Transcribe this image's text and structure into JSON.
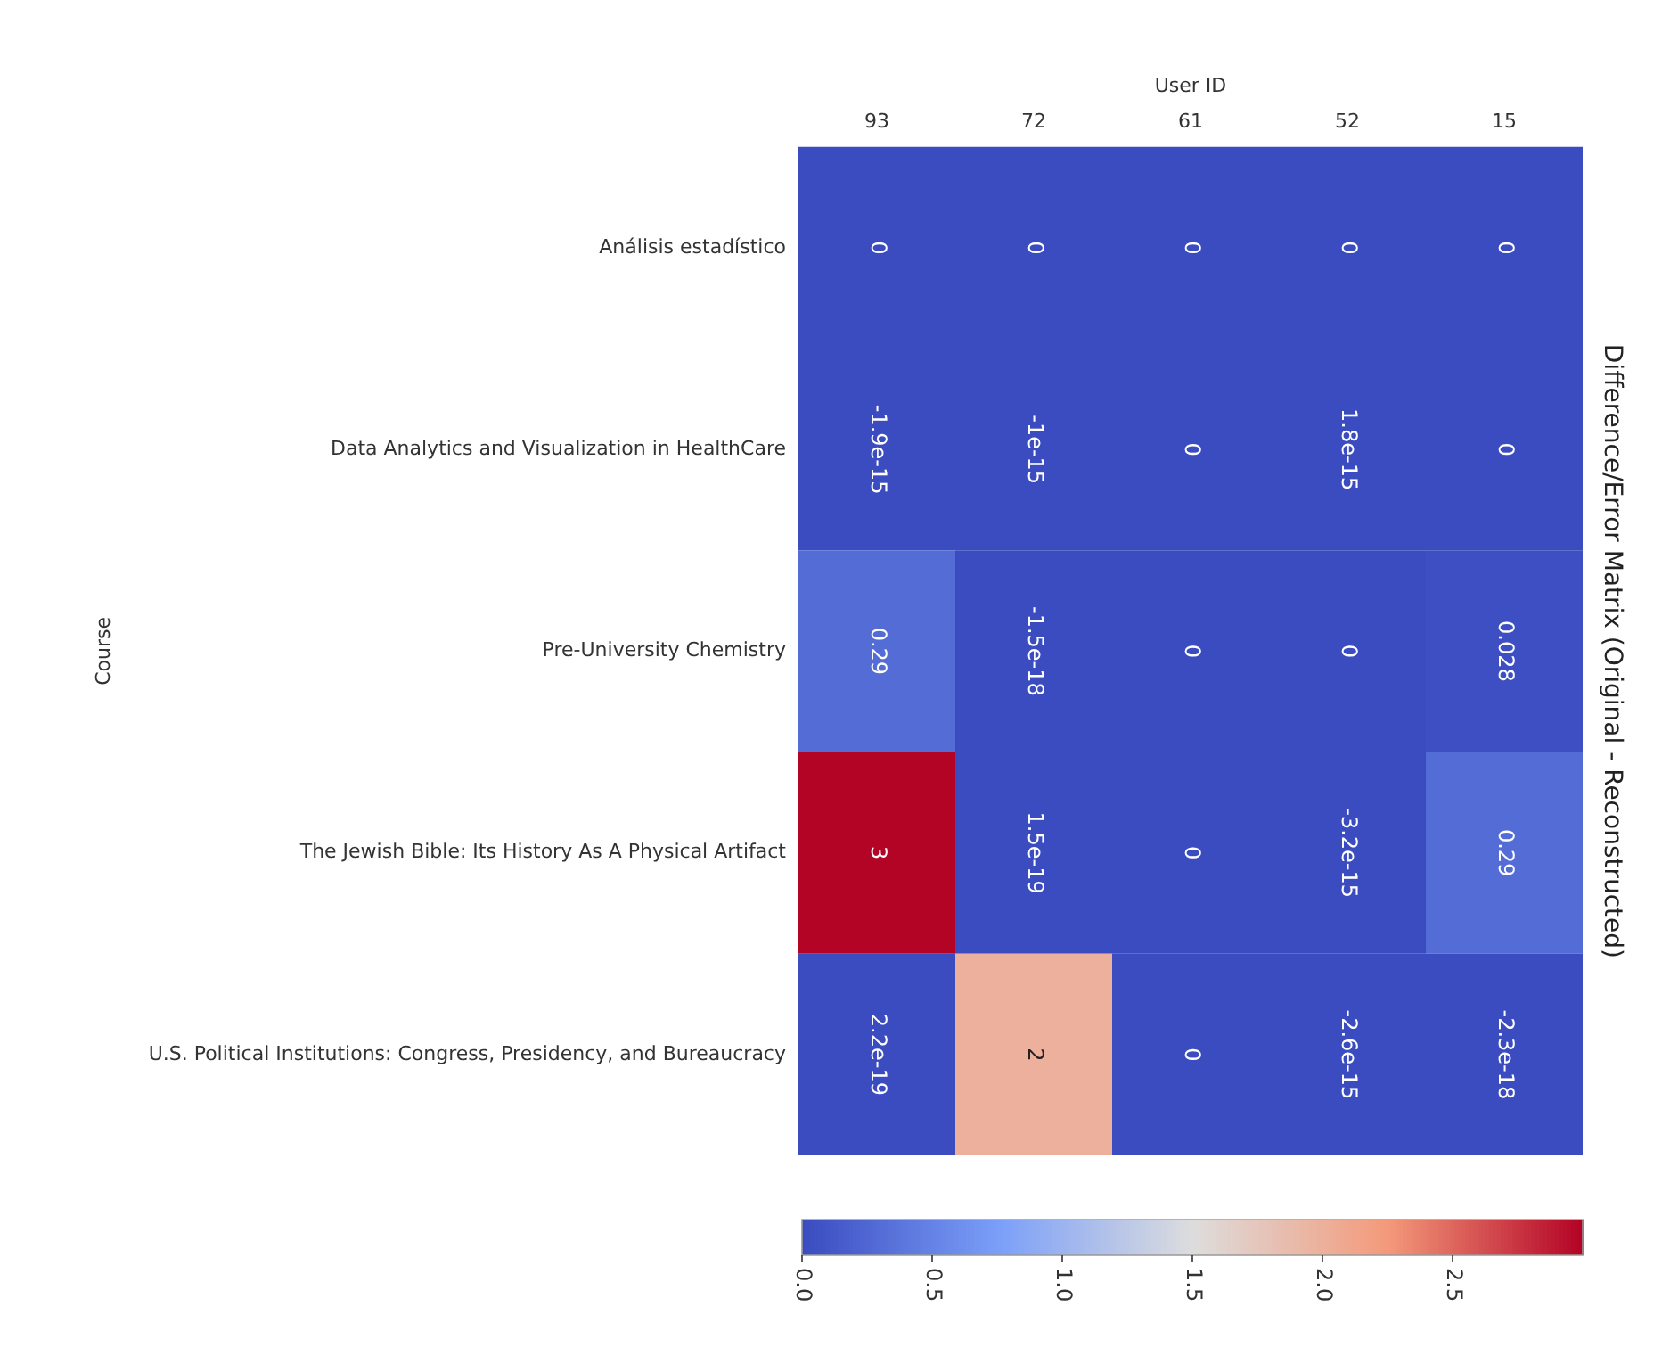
{
  "chart_data": {
    "type": "heatmap",
    "title": "Difference/Error Matrix (Original - Reconstructed)",
    "xlabel": "User ID",
    "ylabel": "Course",
    "categories": [
      "93",
      "72",
      "61",
      "52",
      "15"
    ],
    "y_categories": [
      "Análisis estadístico",
      "Data Analytics and Visualization in HealthCare",
      "Pre-University Chemistry",
      "The Jewish Bible: Its History As A Physical Artifact",
      "U.S. Political Institutions: Congress, Presidency, and Bureaucracy"
    ],
    "cells": [
      [
        0,
        0,
        0,
        0,
        0
      ],
      [
        -1.9e-15,
        -1e-15,
        0,
        1.8e-15,
        0
      ],
      [
        0.29,
        -1.5e-18,
        0,
        0,
        0.028
      ],
      [
        3,
        1.5e-19,
        0,
        -3.2e-15,
        0.29
      ],
      [
        2.2e-19,
        2,
        0,
        -2.6e-15,
        -2.3e-18
      ]
    ],
    "cell_labels": [
      [
        "0",
        "0",
        "0",
        "0",
        "0"
      ],
      [
        "-1.9e-15",
        "-1e-15",
        "0",
        "1.8e-15",
        "0"
      ],
      [
        "0.29",
        "-1.5e-18",
        "0",
        "0",
        "0.028"
      ],
      [
        "3",
        "1.5e-19",
        "0",
        "-3.2e-15",
        "0.29"
      ],
      [
        "2.2e-19",
        "2",
        "0",
        "-2.6e-15",
        "-2.3e-18"
      ]
    ],
    "clim": [
      0,
      3
    ],
    "cticks": [
      {
        "value": 0,
        "label": "0.0"
      },
      {
        "value": 0.5,
        "label": "0.5"
      },
      {
        "value": 1,
        "label": "1.0"
      },
      {
        "value": 1.5,
        "label": "1.5"
      },
      {
        "value": 2,
        "label": "2.0"
      },
      {
        "value": 2.5,
        "label": "2.5"
      }
    ]
  }
}
